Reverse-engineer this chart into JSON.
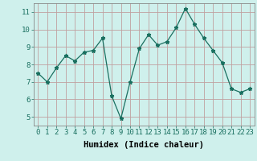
{
  "x": [
    0,
    1,
    2,
    3,
    4,
    5,
    6,
    7,
    8,
    9,
    10,
    11,
    12,
    13,
    14,
    15,
    16,
    17,
    18,
    19,
    20,
    21,
    22,
    23
  ],
  "y": [
    7.5,
    7.0,
    7.8,
    8.5,
    8.2,
    8.7,
    8.8,
    9.5,
    6.2,
    4.9,
    7.0,
    8.9,
    9.7,
    9.1,
    9.3,
    10.1,
    11.2,
    10.3,
    9.5,
    8.8,
    8.1,
    6.6,
    6.4,
    6.6
  ],
  "line_color": "#1a7060",
  "marker": "*",
  "marker_size": 3.5,
  "bg_color": "#cff0ec",
  "grid_color": "#c0a0a0",
  "xlabel": "Humidex (Indice chaleur)",
  "ylabel": "",
  "ylim": [
    4.5,
    11.5
  ],
  "xlim": [
    -0.5,
    23.5
  ],
  "yticks": [
    5,
    6,
    7,
    8,
    9,
    10,
    11
  ],
  "xticks": [
    0,
    1,
    2,
    3,
    4,
    5,
    6,
    7,
    8,
    9,
    10,
    11,
    12,
    13,
    14,
    15,
    16,
    17,
    18,
    19,
    20,
    21,
    22,
    23
  ],
  "xtick_labels": [
    "0",
    "1",
    "2",
    "3",
    "4",
    "5",
    "6",
    "7",
    "8",
    "9",
    "10",
    "11",
    "12",
    "13",
    "14",
    "15",
    "16",
    "17",
    "18",
    "19",
    "20",
    "21",
    "22",
    "23"
  ],
  "title": "",
  "font_size": 6.5,
  "xlabel_fontsize": 7.5
}
